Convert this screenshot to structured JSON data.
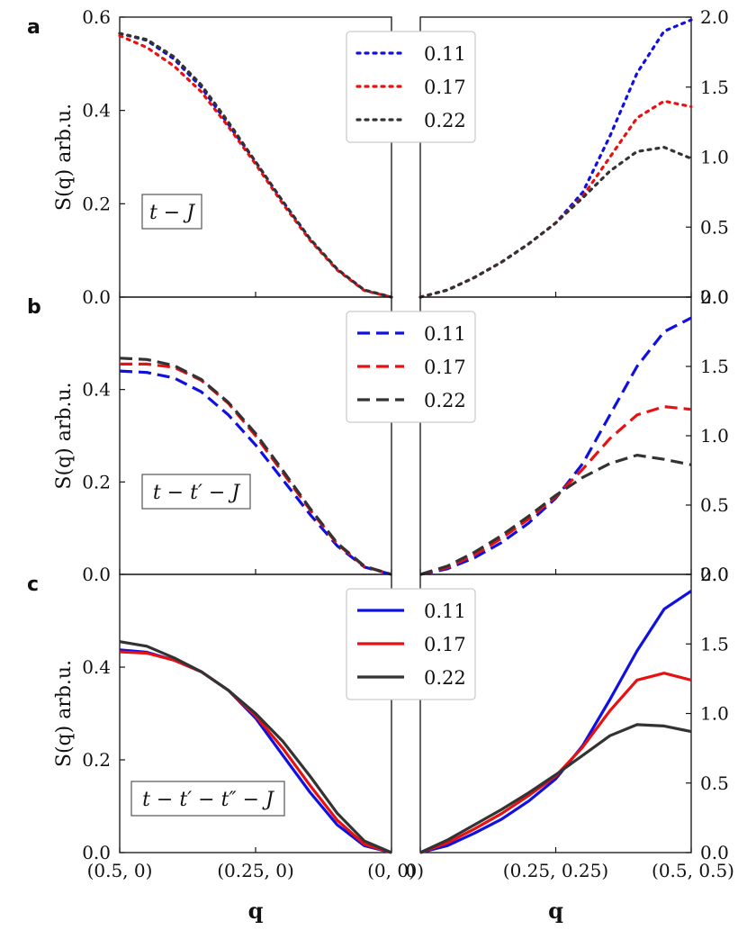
{
  "chart_data": [
    {
      "type": "line",
      "panel_label": "a",
      "model_label": "t − J",
      "ylabel": "S(q) arb.u.",
      "line_style": "dotted",
      "legend": [
        "0.11",
        "0.17",
        "0.22"
      ],
      "colors": [
        "#1010e0",
        "#e81010",
        "#333333"
      ],
      "left": {
        "x_ticks": [
          "(0.5, 0)",
          "(0.25, 0)",
          "(0, 0)"
        ],
        "xlim": [
          0,
          0.5
        ],
        "ylim": [
          0,
          0.6
        ],
        "y_ticks": [
          "0.0",
          "0.2",
          "0.4",
          "0.6"
        ],
        "series": [
          {
            "name": "0.11",
            "x": [
              0,
              0.05,
              0.1,
              0.15,
              0.2,
              0.25,
              0.3,
              0.35,
              0.4,
              0.45,
              0.5
            ],
            "y": [
              0.565,
              0.55,
              0.51,
              0.45,
              0.37,
              0.29,
              0.205,
              0.125,
              0.06,
              0.015,
              0.0
            ]
          },
          {
            "name": "0.17",
            "x": [
              0,
              0.05,
              0.1,
              0.15,
              0.2,
              0.25,
              0.3,
              0.35,
              0.4,
              0.45,
              0.5
            ],
            "y": [
              0.56,
              0.535,
              0.495,
              0.44,
              0.365,
              0.285,
              0.2,
              0.122,
              0.058,
              0.014,
              0.0
            ]
          },
          {
            "name": "0.22",
            "x": [
              0,
              0.05,
              0.1,
              0.15,
              0.2,
              0.25,
              0.3,
              0.35,
              0.4,
              0.45,
              0.5
            ],
            "y": [
              0.565,
              0.552,
              0.515,
              0.455,
              0.375,
              0.29,
              0.205,
              0.125,
              0.06,
              0.015,
              0.0
            ]
          }
        ]
      },
      "right": {
        "x_ticks": [
          "0)",
          "(0.25, 0.25)",
          "(0.5, 0.5)"
        ],
        "xlim": [
          0,
          0.5
        ],
        "ylim": [
          0,
          2.0
        ],
        "y_ticks": [
          "0.0",
          "0.5",
          "1.0",
          "1.5",
          "2.0"
        ],
        "series": [
          {
            "name": "0.11",
            "x": [
              0,
              0.05,
              0.1,
              0.15,
              0.2,
              0.25,
              0.3,
              0.35,
              0.4,
              0.45,
              0.5
            ],
            "y": [
              0.0,
              0.05,
              0.14,
              0.25,
              0.38,
              0.53,
              0.75,
              1.15,
              1.6,
              1.9,
              1.98
            ]
          },
          {
            "name": "0.17",
            "x": [
              0,
              0.05,
              0.1,
              0.15,
              0.2,
              0.25,
              0.3,
              0.35,
              0.4,
              0.45,
              0.5
            ],
            "y": [
              0.0,
              0.05,
              0.14,
              0.25,
              0.38,
              0.53,
              0.72,
              1.0,
              1.28,
              1.4,
              1.36
            ]
          },
          {
            "name": "0.22",
            "x": [
              0,
              0.05,
              0.1,
              0.15,
              0.2,
              0.25,
              0.3,
              0.35,
              0.4,
              0.45,
              0.5
            ],
            "y": [
              0.0,
              0.05,
              0.14,
              0.25,
              0.38,
              0.53,
              0.71,
              0.9,
              1.04,
              1.07,
              0.99
            ]
          }
        ]
      }
    },
    {
      "type": "line",
      "panel_label": "b",
      "model_label": "t − t′ − J",
      "ylabel": "S(q) arb.u.",
      "line_style": "dashed",
      "legend": [
        "0.11",
        "0.17",
        "0.22"
      ],
      "colors": [
        "#1010e0",
        "#e81010",
        "#333333"
      ],
      "left": {
        "x_ticks": [
          "(0.5, 0)",
          "(0.25, 0)",
          "(0, 0)"
        ],
        "xlim": [
          0,
          0.5
        ],
        "ylim": [
          0,
          0.6
        ],
        "y_ticks": [
          "0.0",
          "0.2",
          "0.4"
        ],
        "series": [
          {
            "name": "0.11",
            "x": [
              0,
              0.05,
              0.1,
              0.15,
              0.2,
              0.25,
              0.3,
              0.35,
              0.4,
              0.45,
              0.5
            ],
            "y": [
              0.44,
              0.437,
              0.425,
              0.395,
              0.345,
              0.28,
              0.205,
              0.13,
              0.062,
              0.016,
              0.0
            ]
          },
          {
            "name": "0.17",
            "x": [
              0,
              0.05,
              0.1,
              0.15,
              0.2,
              0.25,
              0.3,
              0.35,
              0.4,
              0.45,
              0.5
            ],
            "y": [
              0.455,
              0.455,
              0.448,
              0.42,
              0.37,
              0.3,
              0.22,
              0.14,
              0.066,
              0.017,
              0.0
            ]
          },
          {
            "name": "0.22",
            "x": [
              0,
              0.05,
              0.1,
              0.15,
              0.2,
              0.25,
              0.3,
              0.35,
              0.4,
              0.45,
              0.5
            ],
            "y": [
              0.468,
              0.465,
              0.452,
              0.422,
              0.372,
              0.305,
              0.225,
              0.143,
              0.068,
              0.018,
              0.0
            ]
          }
        ]
      },
      "right": {
        "x_ticks": [
          "0)",
          "(0.25, 0.25)",
          "(0.5, 0.5)"
        ],
        "xlim": [
          0,
          0.5
        ],
        "ylim": [
          0,
          2.0
        ],
        "y_ticks": [
          "0.0",
          "0.5",
          "1.0",
          "1.5",
          "2.0"
        ],
        "series": [
          {
            "name": "0.11",
            "x": [
              0,
              0.05,
              0.1,
              0.15,
              0.2,
              0.25,
              0.3,
              0.35,
              0.4,
              0.45,
              0.5
            ],
            "y": [
              0.0,
              0.04,
              0.12,
              0.23,
              0.37,
              0.55,
              0.8,
              1.15,
              1.5,
              1.75,
              1.85
            ]
          },
          {
            "name": "0.17",
            "x": [
              0,
              0.05,
              0.1,
              0.15,
              0.2,
              0.25,
              0.3,
              0.35,
              0.4,
              0.45,
              0.5
            ],
            "y": [
              0.0,
              0.05,
              0.14,
              0.26,
              0.4,
              0.56,
              0.76,
              0.98,
              1.15,
              1.21,
              1.19
            ]
          },
          {
            "name": "0.22",
            "x": [
              0,
              0.05,
              0.1,
              0.15,
              0.2,
              0.25,
              0.3,
              0.35,
              0.4,
              0.45,
              0.5
            ],
            "y": [
              0.0,
              0.06,
              0.16,
              0.28,
              0.42,
              0.57,
              0.7,
              0.8,
              0.86,
              0.83,
              0.79
            ]
          }
        ]
      }
    },
    {
      "type": "line",
      "panel_label": "c",
      "model_label": "t − t′ − t″ − J",
      "ylabel": "S(q) arb.u.",
      "line_style": "solid",
      "legend": [
        "0.11",
        "0.17",
        "0.22"
      ],
      "colors": [
        "#1010e0",
        "#e81010",
        "#333333"
      ],
      "xlabel": "q",
      "left": {
        "x_ticks": [
          "(0.5, 0)",
          "(0.25, 0)",
          "(0, 0)"
        ],
        "xlim": [
          0,
          0.5
        ],
        "ylim": [
          0,
          0.6
        ],
        "y_ticks": [
          "0.0",
          "0.2",
          "0.4"
        ],
        "series": [
          {
            "name": "0.11",
            "x": [
              0,
              0.05,
              0.1,
              0.15,
              0.2,
              0.25,
              0.3,
              0.35,
              0.4,
              0.45,
              0.5
            ],
            "y": [
              0.437,
              0.432,
              0.415,
              0.39,
              0.35,
              0.29,
              0.21,
              0.13,
              0.06,
              0.015,
              0.0
            ]
          },
          {
            "name": "0.17",
            "x": [
              0,
              0.05,
              0.1,
              0.15,
              0.2,
              0.25,
              0.3,
              0.35,
              0.4,
              0.45,
              0.5
            ],
            "y": [
              0.433,
              0.43,
              0.415,
              0.39,
              0.35,
              0.295,
              0.225,
              0.145,
              0.07,
              0.018,
              0.0
            ]
          },
          {
            "name": "0.22",
            "x": [
              0,
              0.05,
              0.1,
              0.15,
              0.2,
              0.25,
              0.3,
              0.35,
              0.4,
              0.45,
              0.5
            ],
            "y": [
              0.455,
              0.445,
              0.42,
              0.39,
              0.35,
              0.3,
              0.24,
              0.165,
              0.085,
              0.025,
              0.0
            ]
          }
        ]
      },
      "right": {
        "x_ticks": [
          "0)",
          "(0.25, 0.25)",
          "(0.5, 0.5)"
        ],
        "xlim": [
          0,
          0.5
        ],
        "ylim": [
          0,
          2.0
        ],
        "y_ticks": [
          "0.0",
          "0.5",
          "1.0",
          "1.5",
          "2.0"
        ],
        "series": [
          {
            "name": "0.11",
            "x": [
              0,
              0.05,
              0.1,
              0.15,
              0.2,
              0.25,
              0.3,
              0.35,
              0.4,
              0.45,
              0.5
            ],
            "y": [
              0.0,
              0.05,
              0.14,
              0.24,
              0.37,
              0.53,
              0.77,
              1.1,
              1.45,
              1.75,
              1.88
            ]
          },
          {
            "name": "0.17",
            "x": [
              0,
              0.05,
              0.1,
              0.15,
              0.2,
              0.25,
              0.3,
              0.35,
              0.4,
              0.45,
              0.5
            ],
            "y": [
              0.0,
              0.07,
              0.17,
              0.28,
              0.41,
              0.55,
              0.76,
              1.02,
              1.24,
              1.29,
              1.24
            ]
          },
          {
            "name": "0.22",
            "x": [
              0,
              0.05,
              0.1,
              0.15,
              0.2,
              0.25,
              0.3,
              0.35,
              0.4,
              0.45,
              0.5
            ],
            "y": [
              0.0,
              0.09,
              0.2,
              0.31,
              0.43,
              0.56,
              0.7,
              0.84,
              0.92,
              0.91,
              0.87
            ]
          }
        ]
      }
    }
  ]
}
